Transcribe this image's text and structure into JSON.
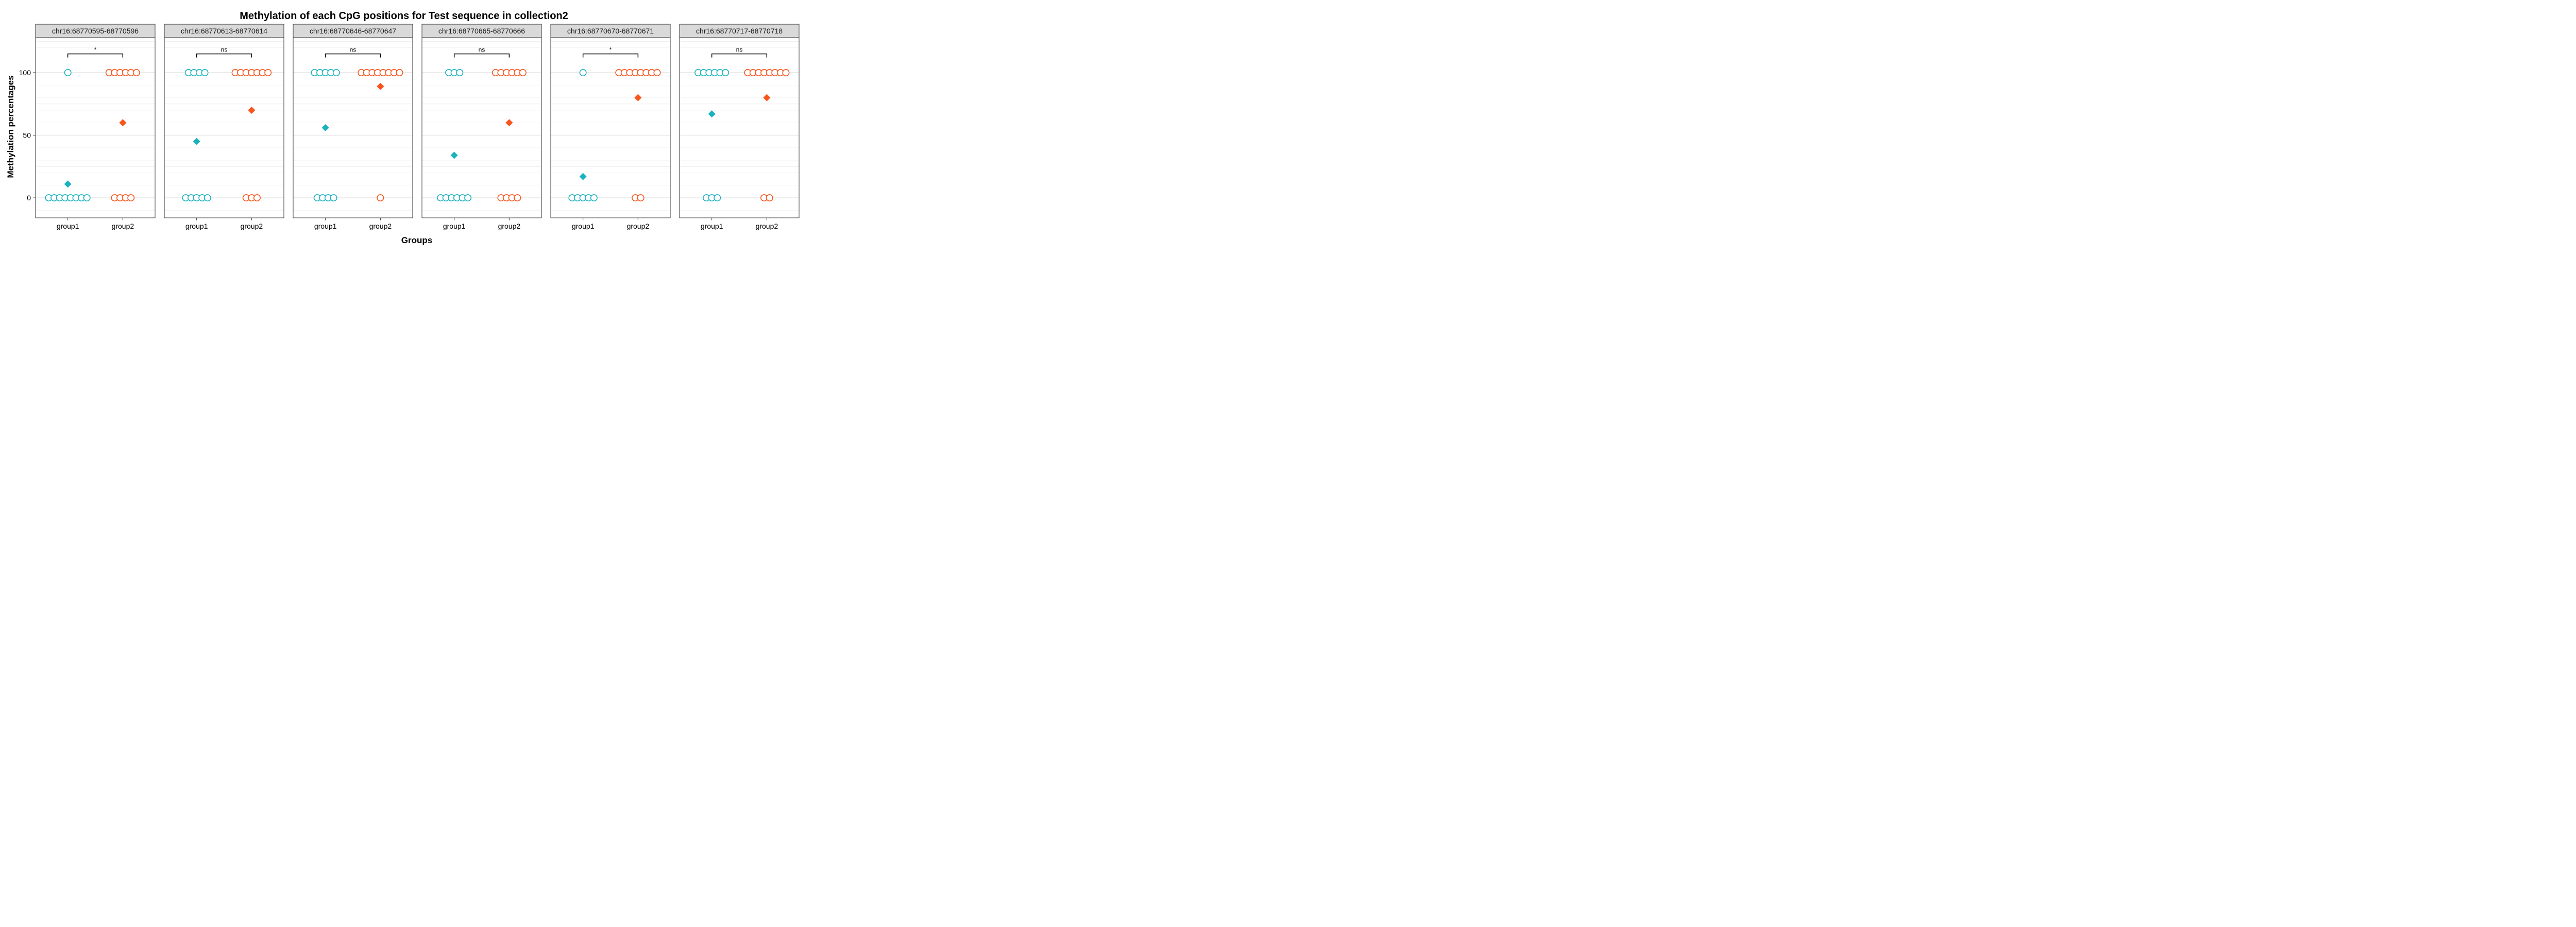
{
  "chart_data": {
    "type": "scatter",
    "title": "Methylation of each CpG positions for Test sequence in collection2",
    "xlabel": "Groups",
    "ylabel": "Methylation percentages",
    "categories": [
      "group1",
      "group2"
    ],
    "ylim": [
      -16,
      128
    ],
    "yticks": [
      0,
      50,
      100
    ],
    "grid": true,
    "colors": {
      "group1": "#1AB2BE",
      "group2": "#F8541B",
      "bracket": "#000000"
    },
    "marker_legend": {
      "points": "open-circle",
      "mean": "filled-diamond"
    },
    "panels": [
      {
        "label": "chr16:68770595-68770596",
        "significance": "*",
        "points": {
          "group1": {
            "0": 8,
            "100": 1
          },
          "group2": {
            "0": 4,
            "100": 6
          }
        },
        "mean": {
          "group1": 11,
          "group2": 60
        }
      },
      {
        "label": "chr16:68770613-68770614",
        "significance": "ns",
        "points": {
          "group1": {
            "0": 5,
            "100": 4
          },
          "group2": {
            "0": 3,
            "100": 7
          }
        },
        "mean": {
          "group1": 45,
          "group2": 70
        }
      },
      {
        "label": "chr16:68770646-68770647",
        "significance": "ns",
        "points": {
          "group1": {
            "0": 4,
            "100": 5
          },
          "group2": {
            "0": 1,
            "100": 8
          }
        },
        "mean": {
          "group1": 56,
          "group2": 89
        }
      },
      {
        "label": "chr16:68770665-68770666",
        "significance": "ns",
        "points": {
          "group1": {
            "0": 6,
            "100": 3
          },
          "group2": {
            "0": 4,
            "100": 6
          }
        },
        "mean": {
          "group1": 34,
          "group2": 60
        }
      },
      {
        "label": "chr16:68770670-68770671",
        "significance": "*",
        "points": {
          "group1": {
            "0": 5,
            "100": 1
          },
          "group2": {
            "0": 2,
            "100": 8
          }
        },
        "mean": {
          "group1": 17,
          "group2": 80
        }
      },
      {
        "label": "chr16:68770717-68770718",
        "significance": "ns",
        "points": {
          "group1": {
            "0": 3,
            "100": 6
          },
          "group2": {
            "0": 2,
            "100": 8
          }
        },
        "mean": {
          "group1": 67,
          "group2": 80
        }
      }
    ]
  }
}
